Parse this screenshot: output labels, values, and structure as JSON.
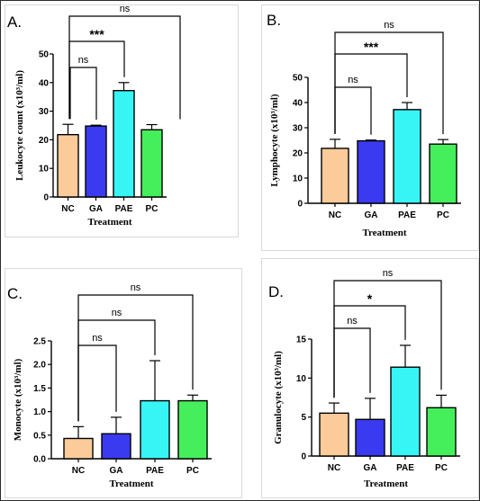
{
  "colors": {
    "NC": "#fbcb99",
    "GA": "#3a3af0",
    "PAE": "#37f5f5",
    "PC": "#45ef5b",
    "axis": "#000000"
  },
  "chart_data": [
    {
      "panel_label": "A.",
      "type": "bar",
      "categories": [
        "NC",
        "GA",
        "PAE",
        "PC"
      ],
      "values": [
        21.8,
        24.8,
        37.2,
        23.5
      ],
      "errors": [
        3.6,
        0.3,
        2.8,
        1.8
      ],
      "xlabel": "Treatment",
      "ylabel": "Leukocyte count (x10³/ml)",
      "ylim": [
        0,
        50
      ],
      "yticks": [
        "0",
        "10",
        "20",
        "30",
        "40",
        "50"
      ],
      "comparisons": [
        {
          "pair": [
            "NC",
            "GA"
          ],
          "label": "ns"
        },
        {
          "pair": [
            "NC",
            "PAE"
          ],
          "label": "***"
        },
        {
          "pair": [
            "NC",
            "PC"
          ],
          "label": "ns"
        }
      ]
    },
    {
      "panel_label": "B.",
      "type": "bar",
      "categories": [
        "NC",
        "GA",
        "PAE",
        "PC"
      ],
      "values": [
        21.8,
        24.8,
        37.2,
        23.5
      ],
      "errors": [
        3.6,
        0.3,
        2.8,
        1.8
      ],
      "xlabel": "Treatment",
      "ylabel": "Lymphocyte (x10³/ml)",
      "ylim": [
        0,
        50
      ],
      "yticks": [
        "0",
        "10",
        "20",
        "30",
        "40",
        "50"
      ],
      "comparisons": [
        {
          "pair": [
            "NC",
            "GA"
          ],
          "label": "ns"
        },
        {
          "pair": [
            "NC",
            "PAE"
          ],
          "label": "***"
        },
        {
          "pair": [
            "NC",
            "PC"
          ],
          "label": "ns"
        }
      ]
    },
    {
      "panel_label": "C.",
      "type": "bar",
      "categories": [
        "NC",
        "GA",
        "PAE",
        "PC"
      ],
      "values": [
        0.43,
        0.53,
        1.23,
        1.23
      ],
      "errors": [
        0.25,
        0.35,
        0.85,
        0.12
      ],
      "xlabel": "Treatment",
      "ylabel": "Monocyte (x10³/ml)",
      "ylim": [
        0,
        2.5
      ],
      "yticks": [
        "0.0",
        "0.5",
        "1.0",
        "1.5",
        "2.0",
        "2.5"
      ],
      "comparisons": [
        {
          "pair": [
            "NC",
            "GA"
          ],
          "label": "ns"
        },
        {
          "pair": [
            "NC",
            "PAE"
          ],
          "label": "ns"
        },
        {
          "pair": [
            "NC",
            "PC"
          ],
          "label": "ns"
        }
      ]
    },
    {
      "panel_label": "D.",
      "type": "bar",
      "categories": [
        "NC",
        "GA",
        "PAE",
        "PC"
      ],
      "values": [
        5.5,
        4.7,
        11.4,
        6.2
      ],
      "errors": [
        1.3,
        2.7,
        2.8,
        1.6
      ],
      "xlabel": "Treatment",
      "ylabel": "Granulocyte (x10³/ml)",
      "ylim": [
        0,
        15
      ],
      "yticks": [
        "0",
        "5",
        "10",
        "15"
      ],
      "comparisons": [
        {
          "pair": [
            "NC",
            "GA"
          ],
          "label": "ns"
        },
        {
          "pair": [
            "NC",
            "PAE"
          ],
          "label": "*"
        },
        {
          "pair": [
            "NC",
            "PC"
          ],
          "label": "ns"
        }
      ]
    }
  ]
}
